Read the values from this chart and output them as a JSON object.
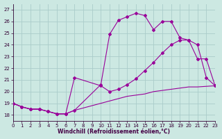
{
  "xlabel": "Windchill (Refroidissement éolien,°C)",
  "background_color": "#cce8e2",
  "grid_color": "#aaccca",
  "line_color": "#990099",
  "xlim": [
    0,
    23
  ],
  "ylim": [
    17.5,
    27.5
  ],
  "yticks": [
    18,
    19,
    20,
    21,
    22,
    23,
    24,
    25,
    26,
    27
  ],
  "xticks": [
    0,
    1,
    2,
    3,
    4,
    5,
    6,
    7,
    8,
    9,
    10,
    11,
    12,
    13,
    14,
    15,
    16,
    17,
    18,
    19,
    20,
    21,
    22,
    23
  ],
  "line1_x": [
    0,
    1,
    2,
    3,
    4,
    5,
    6,
    7,
    8,
    9,
    10,
    11,
    12,
    13,
    14,
    15,
    16,
    17,
    18,
    19,
    20,
    21,
    22,
    23
  ],
  "line1_y": [
    19.0,
    18.7,
    18.5,
    18.5,
    18.3,
    18.1,
    18.1,
    18.4,
    18.6,
    18.8,
    19.0,
    19.2,
    19.4,
    19.6,
    19.7,
    19.8,
    20.0,
    20.1,
    20.2,
    20.3,
    20.4,
    20.4,
    20.45,
    20.5
  ],
  "line2_x": [
    0,
    1,
    2,
    3,
    4,
    5,
    6,
    7,
    10,
    11,
    12,
    13,
    14,
    15,
    16,
    17,
    18,
    19,
    20,
    21,
    22,
    23
  ],
  "line2_y": [
    19.0,
    18.7,
    18.5,
    18.5,
    18.3,
    18.1,
    18.1,
    21.2,
    20.5,
    20.0,
    20.2,
    20.6,
    21.1,
    21.8,
    22.5,
    23.3,
    24.0,
    24.4,
    24.4,
    24.0,
    21.2,
    20.5
  ],
  "line3_x": [
    0,
    1,
    2,
    3,
    4,
    5,
    6,
    7,
    10,
    11,
    12,
    13,
    14,
    15,
    16,
    17,
    18,
    19,
    20,
    21,
    22,
    23
  ],
  "line3_y": [
    19.0,
    18.7,
    18.5,
    18.5,
    18.3,
    18.1,
    18.1,
    18.4,
    20.6,
    24.9,
    26.1,
    26.4,
    26.7,
    26.5,
    25.3,
    26.0,
    26.0,
    24.6,
    24.4,
    22.8,
    22.8,
    20.5
  ]
}
